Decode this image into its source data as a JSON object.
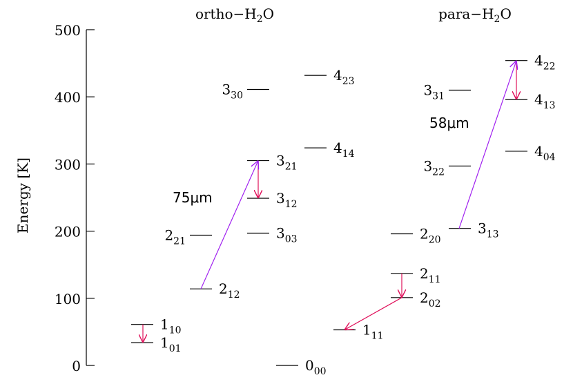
{
  "chart_data": {
    "type": "levels",
    "ylabel": "Energy [K]",
    "ylim": [
      0,
      500
    ],
    "yticks": [
      0,
      100,
      200,
      300,
      400,
      500
    ],
    "groups": [
      {
        "prefix": "ortho−H",
        "sub": "2",
        "suffix": "O"
      },
      {
        "prefix": "para−H",
        "sub": "2",
        "suffix": "O"
      }
    ],
    "levels": [
      {
        "j": "1",
        "k": "01",
        "energy": 34
      },
      {
        "j": "1",
        "k": "10",
        "energy": 61
      },
      {
        "j": "2",
        "k": "12",
        "energy": 114
      },
      {
        "j": "2",
        "k": "21",
        "energy": 194
      },
      {
        "j": "3",
        "k": "03",
        "energy": 197
      },
      {
        "j": "3",
        "k": "12",
        "energy": 249
      },
      {
        "j": "3",
        "k": "21",
        "energy": 305
      },
      {
        "j": "3",
        "k": "30",
        "energy": 411
      },
      {
        "j": "4",
        "k": "14",
        "energy": 324
      },
      {
        "j": "4",
        "k": "23",
        "energy": 432
      },
      {
        "j": "0",
        "k": "00",
        "energy": 0
      },
      {
        "j": "1",
        "k": "11",
        "energy": 53
      },
      {
        "j": "2",
        "k": "02",
        "energy": 101
      },
      {
        "j": "2",
        "k": "11",
        "energy": 137
      },
      {
        "j": "2",
        "k": "20",
        "energy": 196
      },
      {
        "j": "3",
        "k": "13",
        "energy": 204
      },
      {
        "j": "3",
        "k": "22",
        "energy": 297
      },
      {
        "j": "3",
        "k": "31",
        "energy": 410
      },
      {
        "j": "4",
        "k": "04",
        "energy": 319
      },
      {
        "j": "4",
        "k": "13",
        "energy": 396
      },
      {
        "j": "4",
        "k": "22",
        "energy": 454
      }
    ],
    "annotations": [
      {
        "text": "75μm",
        "color": "#a020f0"
      },
      {
        "text": "58μm",
        "color": "#a020f0"
      }
    ],
    "arrow_color": "#e0105a"
  }
}
